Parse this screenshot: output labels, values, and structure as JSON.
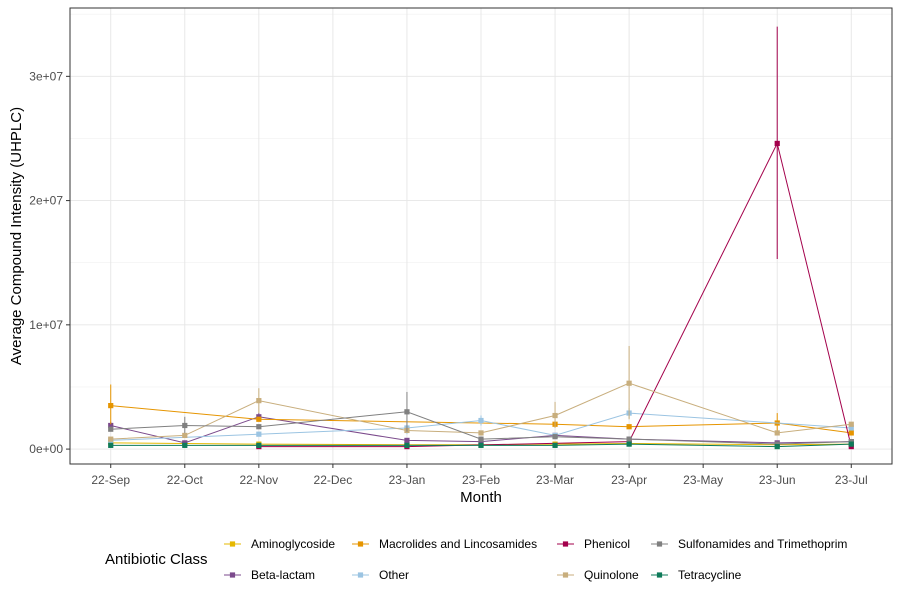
{
  "chart_data": {
    "type": "line",
    "title": "",
    "xlabel": "Month",
    "ylabel": "Average Compound Intensity (UHPLC)",
    "categories": [
      "22-Sep",
      "22-Oct",
      "22-Nov",
      "22-Dec",
      "23-Jan",
      "23-Feb",
      "23-Mar",
      "23-Apr",
      "23-May",
      "23-Jun",
      "23-Jul"
    ],
    "y_ticks": [
      0,
      10000000,
      20000000,
      30000000
    ],
    "y_tick_labels": [
      "0e+00",
      "1e+07",
      "2e+07",
      "3e+07"
    ],
    "ylim": [
      -1200000,
      35500000
    ],
    "grid": true,
    "legend_title": "Antibiotic Class",
    "legend_position": "bottom",
    "series": [
      {
        "name": "Aminoglycoside",
        "color": "#E6B800",
        "points": [
          [
            0,
            500000
          ],
          [
            1,
            450000
          ],
          [
            2,
            400000
          ],
          [
            4,
            350000
          ],
          [
            5,
            350000
          ],
          [
            6,
            400000
          ],
          [
            7,
            450000
          ],
          [
            9,
            350000
          ],
          [
            10,
            400000
          ]
        ],
        "errors": []
      },
      {
        "name": "Beta-lactam",
        "color": "#7B4A8C",
        "points": [
          [
            0,
            1900000
          ],
          [
            1,
            500000
          ],
          [
            2,
            2600000
          ],
          [
            4,
            700000
          ],
          [
            5,
            600000
          ],
          [
            6,
            1100000
          ],
          [
            7,
            800000
          ],
          [
            9,
            500000
          ],
          [
            10,
            600000
          ]
        ],
        "errors": [
          [
            0,
            2200000,
            1500000
          ],
          [
            2,
            2900000,
            2300000
          ]
        ]
      },
      {
        "name": "Macrolides and Lincosamides",
        "color": "#E69500",
        "points": [
          [
            0,
            3500000
          ],
          [
            2,
            2400000
          ],
          [
            6,
            2000000
          ],
          [
            7,
            1800000
          ],
          [
            9,
            2100000
          ],
          [
            10,
            1300000
          ]
        ],
        "errors": [
          [
            0,
            5200000,
            2000000
          ],
          [
            9,
            2900000,
            1300000
          ]
        ]
      },
      {
        "name": "Other",
        "color": "#9BC4E2",
        "points": [
          [
            0,
            700000
          ],
          [
            2,
            1200000
          ],
          [
            4,
            1700000
          ],
          [
            5,
            2300000
          ],
          [
            6,
            1100000
          ],
          [
            7,
            2900000
          ],
          [
            10,
            1700000
          ]
        ],
        "errors": [
          [
            4,
            2200000,
            1200000
          ],
          [
            5,
            2700000,
            1900000
          ],
          [
            7,
            3300000,
            2500000
          ]
        ]
      },
      {
        "name": "Phenicol",
        "color": "#A3004B",
        "points": [
          [
            2,
            200000
          ],
          [
            4,
            200000
          ],
          [
            7,
            600000
          ],
          [
            9,
            24600000
          ],
          [
            10,
            200000
          ]
        ],
        "errors": [
          [
            9,
            34000000,
            15300000
          ]
        ]
      },
      {
        "name": "Quinolone",
        "color": "#C8AE7D",
        "points": [
          [
            0,
            800000
          ],
          [
            1,
            1100000
          ],
          [
            2,
            3900000
          ],
          [
            4,
            1500000
          ],
          [
            5,
            1300000
          ],
          [
            6,
            2700000
          ],
          [
            7,
            5300000
          ],
          [
            9,
            1300000
          ],
          [
            10,
            2000000
          ]
        ],
        "errors": [
          [
            2,
            4900000,
            2900000
          ],
          [
            6,
            3800000,
            1700000
          ],
          [
            7,
            8300000,
            2400000
          ]
        ]
      },
      {
        "name": "Sulfonamides and Trimethoprim",
        "color": "#808080",
        "points": [
          [
            0,
            1600000
          ],
          [
            1,
            1900000
          ],
          [
            2,
            1800000
          ],
          [
            4,
            3000000
          ],
          [
            5,
            800000
          ],
          [
            6,
            1000000
          ],
          [
            7,
            800000
          ],
          [
            9,
            400000
          ],
          [
            10,
            600000
          ]
        ],
        "errors": [
          [
            1,
            2600000,
            1300000
          ],
          [
            4,
            4600000,
            1400000
          ]
        ]
      },
      {
        "name": "Tetracycline",
        "color": "#0F7B5A",
        "points": [
          [
            0,
            300000
          ],
          [
            1,
            300000
          ],
          [
            2,
            300000
          ],
          [
            4,
            300000
          ],
          [
            5,
            300000
          ],
          [
            6,
            300000
          ],
          [
            7,
            400000
          ],
          [
            9,
            200000
          ],
          [
            10,
            400000
          ]
        ],
        "errors": []
      }
    ]
  }
}
